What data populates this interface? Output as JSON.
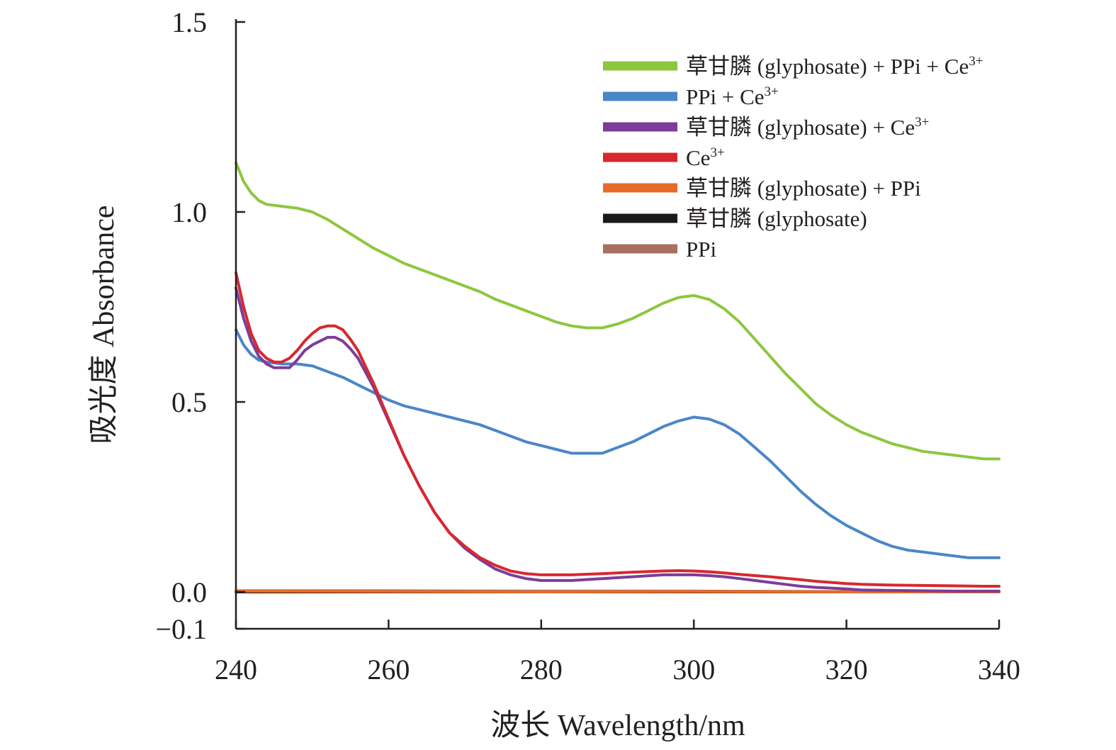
{
  "chart_data": {
    "type": "line",
    "title": "",
    "xlabel": "波长 Wavelength/nm",
    "ylabel": "吸光度 Absorbance",
    "xlim": [
      240,
      340
    ],
    "ylim": [
      -0.1,
      1.5
    ],
    "xticks": [
      "240",
      "260",
      "280",
      "300",
      "320",
      "340"
    ],
    "xtick_values": [
      240,
      260,
      280,
      300,
      320,
      340
    ],
    "yticks": [
      "1.5",
      "1.0",
      "0.5",
      "0.0",
      "−0.1"
    ],
    "ytick_values": [
      1.5,
      1.0,
      0.5,
      0.0,
      -0.1
    ],
    "grid": false,
    "legend_position": "top-right",
    "series": [
      {
        "name": "草甘膦 (glyphosate) + PPi + Ce",
        "superscript": "3+",
        "color": "#8dc63f",
        "x": [
          240,
          241,
          242,
          243,
          244,
          246,
          248,
          250,
          252,
          254,
          256,
          258,
          260,
          262,
          264,
          266,
          268,
          270,
          272,
          274,
          276,
          278,
          280,
          282,
          284,
          286,
          288,
          290,
          292,
          294,
          296,
          298,
          300,
          302,
          304,
          306,
          308,
          310,
          312,
          314,
          316,
          318,
          320,
          322,
          324,
          326,
          328,
          330,
          332,
          334,
          336,
          338,
          340
        ],
        "values": [
          1.13,
          1.08,
          1.05,
          1.03,
          1.02,
          1.015,
          1.01,
          1.0,
          0.98,
          0.955,
          0.93,
          0.905,
          0.885,
          0.865,
          0.85,
          0.835,
          0.82,
          0.805,
          0.79,
          0.77,
          0.755,
          0.74,
          0.725,
          0.71,
          0.7,
          0.695,
          0.695,
          0.705,
          0.72,
          0.74,
          0.76,
          0.775,
          0.78,
          0.77,
          0.745,
          0.71,
          0.665,
          0.62,
          0.575,
          0.535,
          0.495,
          0.465,
          0.44,
          0.42,
          0.405,
          0.39,
          0.38,
          0.37,
          0.365,
          0.36,
          0.355,
          0.35,
          0.35
        ]
      },
      {
        "name": "PPi + Ce",
        "superscript": "3+",
        "color": "#4a86c8",
        "x": [
          240,
          241,
          242,
          243,
          244,
          246,
          248,
          250,
          252,
          254,
          256,
          258,
          260,
          262,
          264,
          266,
          268,
          270,
          272,
          274,
          276,
          278,
          280,
          282,
          284,
          286,
          288,
          290,
          292,
          294,
          296,
          298,
          300,
          302,
          304,
          306,
          308,
          310,
          312,
          314,
          316,
          318,
          320,
          322,
          324,
          326,
          328,
          330,
          332,
          334,
          336,
          338,
          340
        ],
        "values": [
          0.69,
          0.65,
          0.625,
          0.61,
          0.605,
          0.6,
          0.6,
          0.595,
          0.58,
          0.565,
          0.545,
          0.525,
          0.505,
          0.49,
          0.48,
          0.47,
          0.46,
          0.45,
          0.44,
          0.425,
          0.41,
          0.395,
          0.385,
          0.375,
          0.365,
          0.365,
          0.365,
          0.38,
          0.395,
          0.415,
          0.435,
          0.45,
          0.46,
          0.455,
          0.44,
          0.415,
          0.38,
          0.345,
          0.305,
          0.265,
          0.23,
          0.2,
          0.175,
          0.155,
          0.135,
          0.12,
          0.11,
          0.105,
          0.1,
          0.095,
          0.09,
          0.09,
          0.09
        ]
      },
      {
        "name": "草甘膦 (glyphosate) + Ce",
        "superscript": "3+",
        "color": "#7c3d9a",
        "x": [
          240,
          241,
          242,
          243,
          244,
          245,
          246,
          247,
          248,
          249,
          250,
          251,
          252,
          253,
          254,
          255,
          256,
          258,
          260,
          262,
          264,
          266,
          268,
          270,
          272,
          274,
          276,
          278,
          280,
          284,
          288,
          292,
          296,
          298,
          300,
          302,
          304,
          306,
          308,
          310,
          312,
          314,
          316,
          318,
          320,
          322,
          326,
          330,
          334,
          338,
          340
        ],
        "values": [
          0.8,
          0.72,
          0.66,
          0.62,
          0.6,
          0.59,
          0.59,
          0.59,
          0.61,
          0.635,
          0.65,
          0.66,
          0.67,
          0.67,
          0.66,
          0.64,
          0.615,
          0.54,
          0.45,
          0.36,
          0.28,
          0.21,
          0.155,
          0.115,
          0.085,
          0.06,
          0.045,
          0.035,
          0.03,
          0.03,
          0.035,
          0.04,
          0.045,
          0.045,
          0.045,
          0.043,
          0.04,
          0.035,
          0.03,
          0.025,
          0.02,
          0.015,
          0.012,
          0.01,
          0.008,
          0.005,
          0.004,
          0.003,
          0.002,
          0.002,
          0.002
        ]
      },
      {
        "name": "Ce",
        "superscript": "3+",
        "color": "#d7282f",
        "x": [
          240,
          241,
          242,
          243,
          244,
          245,
          246,
          247,
          248,
          249,
          250,
          251,
          252,
          253,
          254,
          255,
          256,
          258,
          260,
          262,
          264,
          266,
          268,
          270,
          272,
          274,
          276,
          278,
          280,
          284,
          288,
          292,
          296,
          298,
          300,
          302,
          304,
          306,
          308,
          310,
          312,
          314,
          316,
          318,
          320,
          322,
          326,
          330,
          334,
          338,
          340
        ],
        "values": [
          0.84,
          0.75,
          0.68,
          0.635,
          0.615,
          0.605,
          0.605,
          0.615,
          0.635,
          0.66,
          0.68,
          0.695,
          0.7,
          0.7,
          0.69,
          0.665,
          0.635,
          0.55,
          0.455,
          0.36,
          0.28,
          0.21,
          0.155,
          0.12,
          0.09,
          0.07,
          0.055,
          0.048,
          0.045,
          0.045,
          0.048,
          0.052,
          0.055,
          0.056,
          0.055,
          0.053,
          0.05,
          0.046,
          0.043,
          0.04,
          0.036,
          0.032,
          0.028,
          0.025,
          0.022,
          0.02,
          0.018,
          0.017,
          0.016,
          0.015,
          0.015
        ]
      },
      {
        "name": "草甘膦 (glyphosate) + PPi",
        "superscript": "",
        "color": "#e86a2a",
        "x": [
          240,
          260,
          280,
          300,
          320,
          340
        ],
        "values": [
          0.002,
          0.001,
          0.0,
          0.001,
          0.0,
          0.0
        ]
      },
      {
        "name": "草甘膦 (glyphosate)",
        "superscript": "",
        "color": "#1a1a1a",
        "x": [
          240,
          260,
          280,
          300,
          320,
          340
        ],
        "values": [
          0.0,
          0.0,
          0.0,
          0.0,
          0.0,
          0.0
        ]
      },
      {
        "name": "PPi",
        "superscript": "",
        "color": "#a87060",
        "x": [
          240,
          260,
          280,
          300,
          320,
          340
        ],
        "values": [
          0.003,
          0.003,
          0.002,
          0.002,
          0.001,
          0.001
        ]
      }
    ]
  }
}
